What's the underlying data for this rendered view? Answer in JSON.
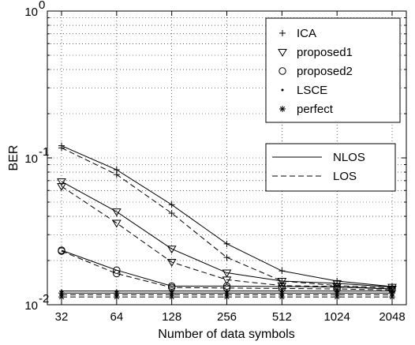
{
  "chart_data": {
    "type": "line",
    "title": "",
    "xlabel": "Number of data symbols",
    "ylabel": "BER",
    "x_categories": [
      "32",
      "64",
      "128",
      "256",
      "512",
      "1024",
      "2048"
    ],
    "y_scale": "log",
    "ylim": [
      0.01,
      1
    ],
    "y_ticks": [
      {
        "value": 1,
        "base": "10",
        "exp": "0"
      },
      {
        "value": 0.1,
        "base": "10",
        "exp": "-1"
      },
      {
        "value": 0.01,
        "base": "10",
        "exp": "-2"
      }
    ],
    "grid": true,
    "series": [
      {
        "name": "ICA",
        "marker": "plus",
        "line": "NLOS",
        "values": [
          0.121,
          0.083,
          0.048,
          0.026,
          0.017,
          0.0145,
          0.0133
        ]
      },
      {
        "name": "ICA",
        "marker": "plus",
        "line": "LOS",
        "values": [
          0.117,
          0.077,
          0.042,
          0.021,
          0.0145,
          0.0135,
          0.013
        ]
      },
      {
        "name": "proposed1",
        "marker": "triangle-down",
        "line": "NLOS",
        "values": [
          0.069,
          0.043,
          0.024,
          0.0165,
          0.0145,
          0.014,
          0.0132
        ]
      },
      {
        "name": "proposed1",
        "marker": "triangle-down",
        "line": "LOS",
        "values": [
          0.064,
          0.036,
          0.0195,
          0.0148,
          0.0135,
          0.0133,
          0.0128
        ]
      },
      {
        "name": "proposed2",
        "marker": "circle",
        "line": "NLOS",
        "values": [
          0.0235,
          0.0172,
          0.0134,
          0.0134,
          0.0133,
          0.0132,
          0.0128
        ]
      },
      {
        "name": "proposed2",
        "marker": "circle",
        "line": "LOS",
        "values": [
          0.0232,
          0.0163,
          0.0131,
          0.013,
          0.0129,
          0.0128,
          0.0126
        ]
      },
      {
        "name": "LSCE",
        "marker": "dot",
        "line": "NLOS",
        "values": [
          0.0124,
          0.0124,
          0.0124,
          0.0124,
          0.0124,
          0.0124,
          0.0124
        ]
      },
      {
        "name": "LSCE",
        "marker": "dot",
        "line": "LOS",
        "values": [
          0.0117,
          0.0117,
          0.0117,
          0.0117,
          0.0117,
          0.0117,
          0.0117
        ]
      },
      {
        "name": "perfect",
        "marker": "asterisk",
        "line": "NLOS",
        "values": [
          0.012,
          0.012,
          0.012,
          0.012,
          0.012,
          0.012,
          0.012
        ]
      },
      {
        "name": "perfect",
        "marker": "asterisk",
        "line": "LOS",
        "values": [
          0.0113,
          0.0113,
          0.0113,
          0.0113,
          0.0113,
          0.0113,
          0.0113
        ]
      }
    ],
    "legend_markers": {
      "position": "top-right",
      "entries": [
        {
          "label": "ICA",
          "marker": "plus"
        },
        {
          "label": "proposed1",
          "marker": "triangle-down"
        },
        {
          "label": "proposed2",
          "marker": "circle"
        },
        {
          "label": "LSCE",
          "marker": "dot"
        },
        {
          "label": "perfect",
          "marker": "asterisk"
        }
      ]
    },
    "legend_lines": {
      "position": "right",
      "entries": [
        {
          "label": "NLOS",
          "style": "solid"
        },
        {
          "label": "LOS",
          "style": "dashed"
        }
      ]
    }
  }
}
